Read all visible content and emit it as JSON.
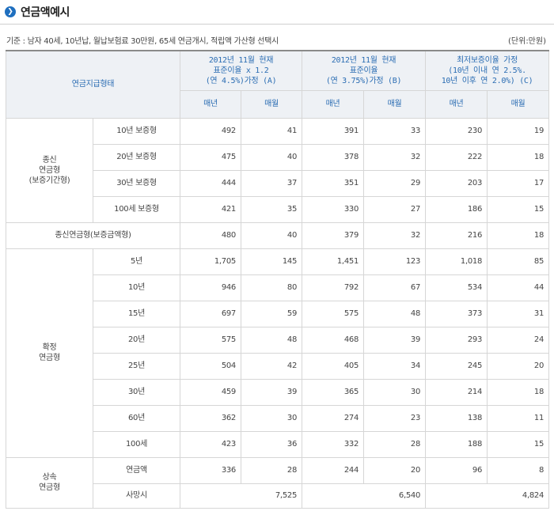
{
  "title": "연금액예시",
  "condition": "기준 : 남자 40세, 10년납, 월납보험료 30만원, 65세 연금개시, 적립액 가산형 선택시",
  "unit": "(단위:만원)",
  "header": {
    "row_label": "연금지급형태",
    "groups": [
      {
        "lines": [
          "2012년 11월 현재",
          "표준이율 x 1.2",
          "(연 4.5%)가정 (A)"
        ]
      },
      {
        "lines": [
          "2012년 11월 현재",
          "표준이율",
          "(연 3.75%)가정 (B)"
        ]
      },
      {
        "lines": [
          "최저보증이율 가정",
          "(10년 이내 연 2.5%.",
          "10년 이후 연 2.0%) (C)"
        ]
      }
    ],
    "sub": [
      "매년",
      "매월",
      "매년",
      "매월",
      "매년",
      "매월"
    ]
  },
  "categories": {
    "lifetime": [
      "종신",
      "연금형",
      "(보증기간형)"
    ],
    "lifetime_amount": "종신연금형(보증금액형)",
    "fixed": [
      "확정",
      "연금형"
    ],
    "inherit": [
      "상속",
      "연금형"
    ]
  },
  "rows": {
    "lifetime": [
      {
        "label": "10년 보증형",
        "values": [
          "492",
          "41",
          "391",
          "33",
          "230",
          "19"
        ]
      },
      {
        "label": "20년 보증형",
        "values": [
          "475",
          "40",
          "378",
          "32",
          "222",
          "18"
        ]
      },
      {
        "label": "30년 보증형",
        "values": [
          "444",
          "37",
          "351",
          "29",
          "203",
          "17"
        ]
      },
      {
        "label": "100세 보증형",
        "values": [
          "421",
          "35",
          "330",
          "27",
          "186",
          "15"
        ]
      }
    ],
    "lifetime_amount": {
      "values": [
        "480",
        "40",
        "379",
        "32",
        "216",
        "18"
      ]
    },
    "fixed": [
      {
        "label": "5년",
        "values": [
          "1,705",
          "145",
          "1,451",
          "123",
          "1,018",
          "85"
        ]
      },
      {
        "label": "10년",
        "values": [
          "946",
          "80",
          "792",
          "67",
          "534",
          "44"
        ]
      },
      {
        "label": "15년",
        "values": [
          "697",
          "59",
          "575",
          "48",
          "373",
          "31"
        ]
      },
      {
        "label": "20년",
        "values": [
          "575",
          "48",
          "468",
          "39",
          "293",
          "24"
        ]
      },
      {
        "label": "25년",
        "values": [
          "504",
          "42",
          "405",
          "34",
          "245",
          "20"
        ]
      },
      {
        "label": "30년",
        "values": [
          "459",
          "39",
          "365",
          "30",
          "214",
          "18"
        ]
      },
      {
        "label": "60년",
        "values": [
          "362",
          "30",
          "274",
          "23",
          "138",
          "11"
        ]
      },
      {
        "label": "100세",
        "values": [
          "423",
          "36",
          "332",
          "28",
          "188",
          "15"
        ]
      }
    ],
    "inherit_annuity": {
      "label": "연금액",
      "values": [
        "336",
        "28",
        "244",
        "20",
        "96",
        "8"
      ]
    },
    "inherit_death": {
      "label": "사망시",
      "values": [
        "7,525",
        "6,540",
        "4,824"
      ]
    }
  }
}
